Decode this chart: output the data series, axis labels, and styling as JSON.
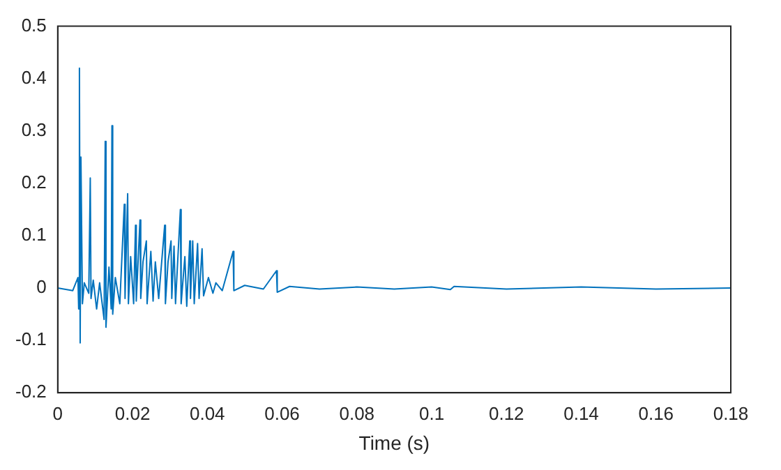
{
  "chart_data": {
    "type": "line",
    "xlabel": "Time (s)",
    "color": "#0072bd",
    "marker": "none",
    "grid": false,
    "x": [
      0,
      0.004,
      0.0054,
      0.0056,
      0.0058,
      0.006,
      0.0062,
      0.0066,
      0.0071,
      0.0083,
      0.0087,
      0.0089,
      0.0095,
      0.0104,
      0.0112,
      0.0124,
      0.0127,
      0.0129,
      0.0137,
      0.0143,
      0.0145,
      0.0147,
      0.0154,
      0.0166,
      0.0178,
      0.018,
      0.0187,
      0.0189,
      0.0195,
      0.0203,
      0.0208,
      0.021,
      0.022,
      0.0222,
      0.0228,
      0.0237,
      0.0239,
      0.0249,
      0.0255,
      0.0261,
      0.027,
      0.0286,
      0.0288,
      0.0295,
      0.0303,
      0.0305,
      0.0311,
      0.0315,
      0.032,
      0.0328,
      0.033,
      0.034,
      0.0345,
      0.0353,
      0.0355,
      0.0361,
      0.0365,
      0.0374,
      0.0378,
      0.0386,
      0.039,
      0.0403,
      0.0415,
      0.0423,
      0.044,
      0.0469,
      0.0471,
      0.05,
      0.055,
      0.0585,
      0.0587,
      0.062,
      0.07,
      0.08,
      0.09,
      0.1,
      0.105,
      0.106,
      0.12,
      0.14,
      0.16,
      0.18
    ],
    "values": [
      0,
      -0.005,
      0.02,
      -0.04,
      0.42,
      -0.105,
      0.25,
      -0.03,
      0.01,
      -0.01,
      0.21,
      -0.02,
      0.015,
      -0.04,
      0.01,
      -0.06,
      0.28,
      -0.075,
      0.04,
      -0.04,
      0.31,
      -0.05,
      0.02,
      -0.03,
      0.16,
      -0.02,
      0.18,
      -0.03,
      0.06,
      -0.03,
      0.12,
      -0.025,
      0.13,
      -0.02,
      0.05,
      0.09,
      -0.03,
      0.07,
      -0.025,
      0.05,
      -0.02,
      0.12,
      -0.03,
      0.05,
      0.09,
      -0.02,
      0.08,
      -0.03,
      0.04,
      0.15,
      -0.03,
      0.06,
      -0.035,
      0.09,
      -0.02,
      0.09,
      -0.03,
      0.085,
      -0.02,
      0.075,
      -0.015,
      0.02,
      -0.01,
      0.01,
      -0.005,
      0.07,
      -0.005,
      0.005,
      -0.002,
      0.033,
      -0.008,
      0.003,
      -0.002,
      0.002,
      -0.002,
      0.002,
      -0.003,
      0.003,
      -0.002,
      0.002,
      -0.002,
      0
    ],
    "xlim": [
      0,
      0.18
    ],
    "xticks": [
      0,
      0.02,
      0.04,
      0.06,
      0.08,
      0.1,
      0.12,
      0.14,
      0.16,
      0.18
    ],
    "ylim": [
      -0.2,
      0.5
    ],
    "yticks": [
      -0.2,
      -0.1,
      0,
      0.1,
      0.2,
      0.3,
      0.4,
      0.5
    ]
  }
}
